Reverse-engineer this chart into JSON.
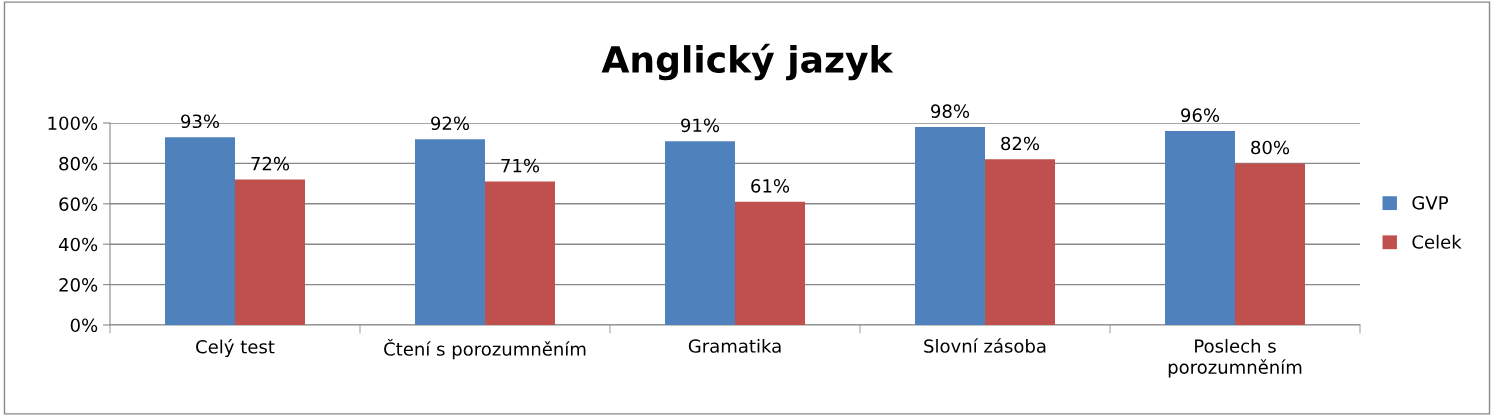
{
  "chart_data": {
    "type": "bar",
    "title": "Anglický jazyk",
    "categories": [
      "Celý test",
      "Čtení s porozumněním",
      "Gramatika",
      "Slovní zásoba",
      "Poslech s\nporozumněním"
    ],
    "series": [
      {
        "name": "GVP",
        "color": "#4f81bd",
        "values": [
          93,
          92,
          91,
          98,
          96
        ],
        "value_labels": [
          "93%",
          "92%",
          "91%",
          "98%",
          "96%"
        ]
      },
      {
        "name": "Celek",
        "color": "#c0504d",
        "values": [
          72,
          71,
          61,
          82,
          80
        ],
        "value_labels": [
          "72%",
          "71%",
          "61%",
          "82%",
          "80%"
        ]
      }
    ],
    "ylim": [
      0,
      100
    ],
    "yticks": [
      {
        "value": 0,
        "label": "0%"
      },
      {
        "value": 20,
        "label": "20%"
      },
      {
        "value": 40,
        "label": "40%"
      },
      {
        "value": 60,
        "label": "60%"
      },
      {
        "value": 80,
        "label": "80%"
      },
      {
        "value": 100,
        "label": "100%"
      }
    ],
    "grid": "y",
    "legend": "right"
  }
}
